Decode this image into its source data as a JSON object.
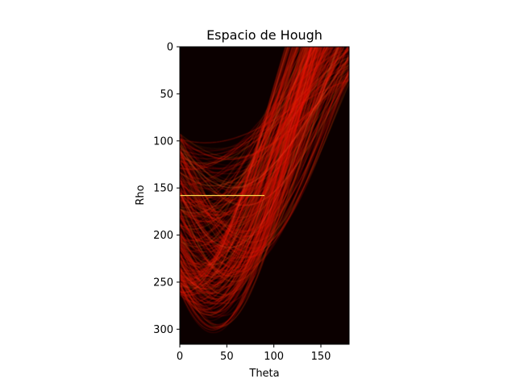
{
  "chart_data": {
    "type": "heatmap",
    "title": "Espacio de Hough",
    "xlabel": "Theta",
    "ylabel": "Rho",
    "xlim": [
      0,
      180
    ],
    "ylim": [
      316,
      0
    ],
    "x_ticks": [
      "0",
      "50",
      "100",
      "150"
    ],
    "y_ticks": [
      "0",
      "50",
      "100",
      "150",
      "200",
      "250",
      "300"
    ],
    "colormap": "hot",
    "background_color": "#0b0000",
    "peak": {
      "theta_range": [
        0,
        90
      ],
      "rho": 158
    },
    "grid": false,
    "legend": false
  }
}
